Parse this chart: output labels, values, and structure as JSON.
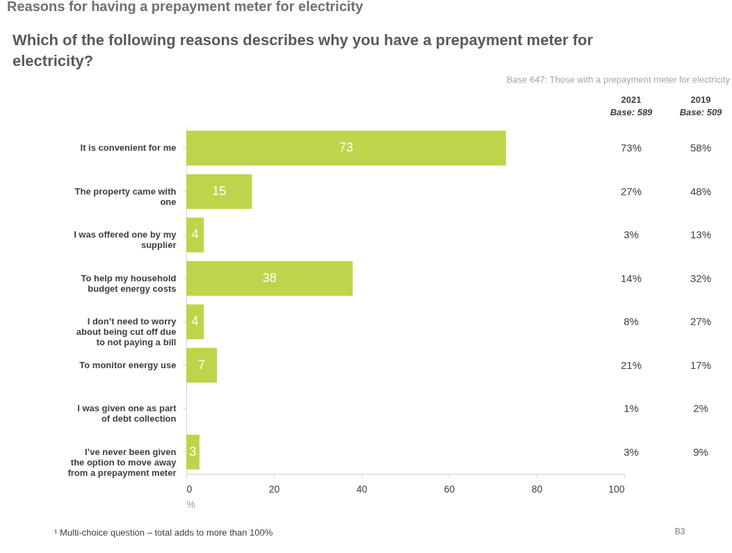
{
  "chart_data": {
    "type": "bar",
    "orientation": "horizontal",
    "title": [
      "Which of the following reasons describes why you have a prepayment meter for",
      "electricity?"
    ],
    "subtitle": "Base 647: Those with a prepayment meter for electricity",
    "categories": [
      "It is convenient for me",
      "The property came with one",
      "I was offered one by my supplier",
      "To help my household budget energy costs",
      "I don’t need to worry about being cut off due to not paying a bill",
      "To monitor energy use",
      "I was given one as part of debt collection",
      "I’ve never been given the option to move away from a prepayment meter"
    ],
    "values": [
      73,
      15,
      4,
      38,
      4,
      7,
      null,
      3
    ],
    "color": "#bdd54a",
    "data_labels": true,
    "xlim": [
      0,
      100
    ],
    "xticks": [
      0,
      20,
      40,
      60,
      80,
      100
    ],
    "xlabel": "%",
    "grid": false,
    "annotations": [
      "Reasons for having a prepayment meter for electricity",
      "2021",
      "Base: 589",
      "73%",
      "27%",
      "3%",
      "14%",
      "8%",
      "21%",
      "1%",
      "3%",
      "2019",
      "Base: 509",
      "58%",
      "48%",
      "13%",
      "32%",
      "27%",
      "17%",
      "2%",
      "9%",
      "¹ Multi-choice question – total adds to more than 100%",
      "B3"
    ]
  }
}
